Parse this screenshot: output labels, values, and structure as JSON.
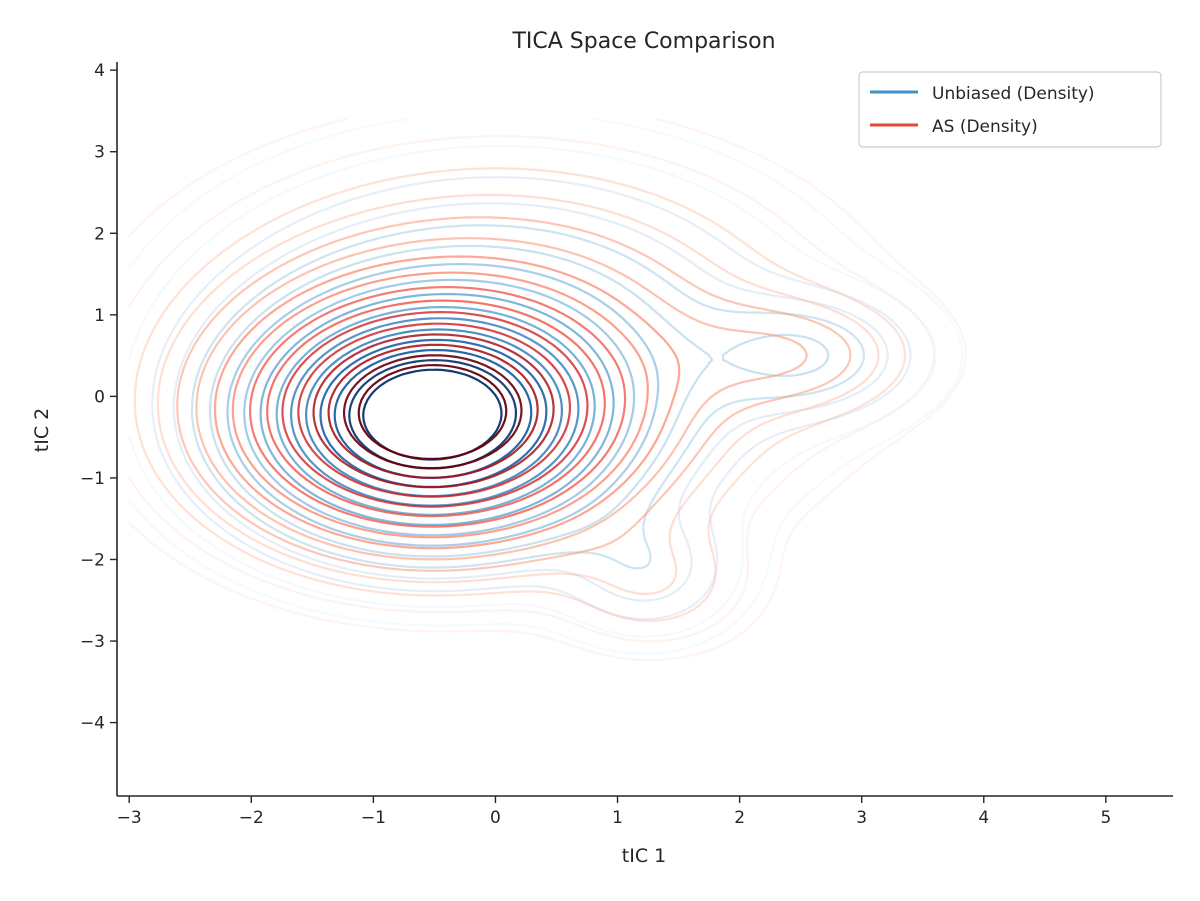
{
  "chart_data": {
    "type": "contour",
    "title": "TICA Space Comparison",
    "xlabel": "tIC 1",
    "ylabel": "tIC 2",
    "xlim": [
      -3.1,
      5.55
    ],
    "ylim": [
      -4.9,
      4.1
    ],
    "x_ticks": [
      -3,
      -2,
      -1,
      0,
      1,
      2,
      3,
      4,
      5
    ],
    "y_ticks": [
      -4,
      -3,
      -2,
      -1,
      0,
      1,
      2,
      3,
      4
    ],
    "x_tick_labels": [
      "−3",
      "−2",
      "−1",
      "0",
      "1",
      "2",
      "3",
      "4",
      "5"
    ],
    "y_tick_labels": [
      "−4",
      "−3",
      "−2",
      "−1",
      "0",
      "1",
      "2",
      "3",
      "4"
    ],
    "grid": false,
    "legend_position": "top-right",
    "series": [
      {
        "name": "Unbiased (Density)",
        "legend_color": "#4292c6",
        "colormap": [
          "#e6f0fa",
          "#c6dbef",
          "#9ecae1",
          "#6baed6",
          "#4292c6",
          "#2171b5",
          "#08519c",
          "#08306b"
        ],
        "peaks": [
          {
            "x": -0.55,
            "y": -0.28,
            "weight": 1.0
          },
          {
            "x": 2.55,
            "y": 0.5,
            "weight": 0.12
          },
          {
            "x": 1.25,
            "y": -2.15,
            "weight": 0.08
          }
        ]
      },
      {
        "name": "AS (Density)",
        "legend_color": "#e34a33",
        "colormap": [
          "#fee0d2",
          "#fcbba1",
          "#fc9272",
          "#fb6a4a",
          "#ef3b2c",
          "#cb181d",
          "#a50f15",
          "#67000d"
        ],
        "peaks": [
          {
            "x": -0.55,
            "y": -0.25,
            "weight": 1.0
          },
          {
            "x": 2.45,
            "y": 0.5,
            "weight": 0.1
          },
          {
            "x": 1.3,
            "y": -2.3,
            "weight": 0.06
          }
        ]
      }
    ]
  }
}
